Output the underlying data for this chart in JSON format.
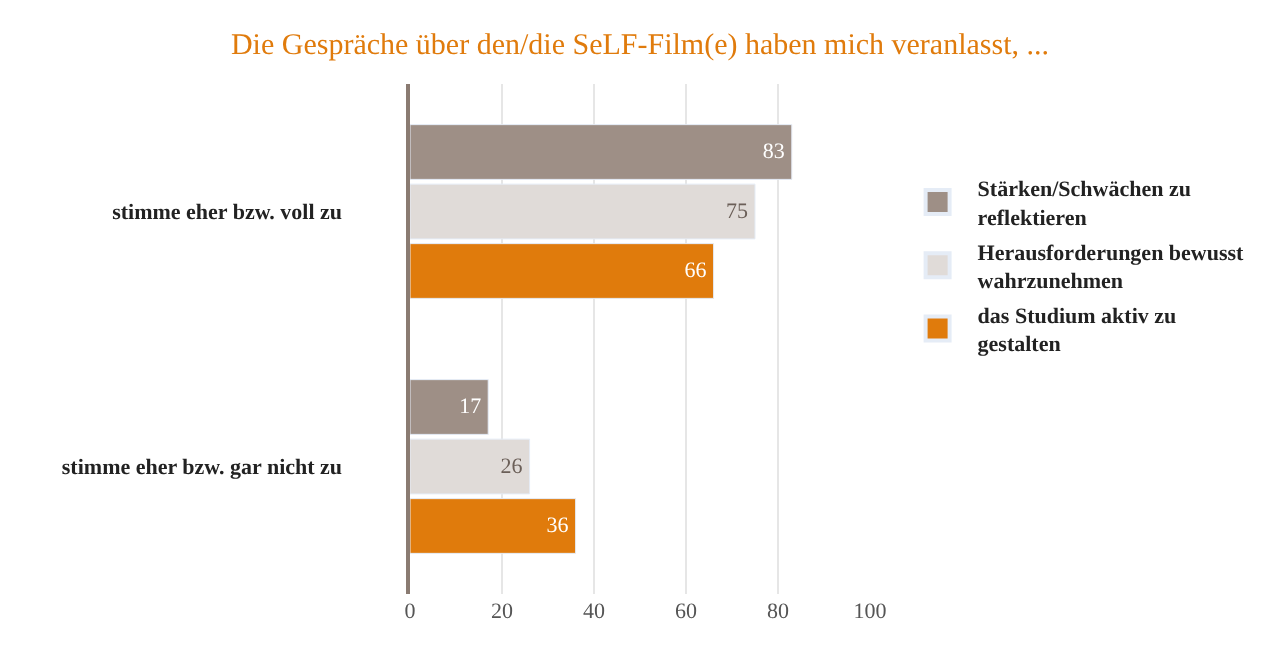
{
  "chart_data": {
    "type": "bar",
    "orientation": "horizontal",
    "title": "Die Gespräche über den/die SeLF-Film(e) haben mich veranlasst, ...",
    "categories": [
      "stimme eher bzw. voll zu",
      "stimme eher bzw. gar nicht zu"
    ],
    "series": [
      {
        "name": "Stärken/Schwächen zu reflektieren",
        "color": "#9e8f86",
        "values": [
          83,
          17
        ]
      },
      {
        "name": "Herausforderungen bewusst wahrzunehmen",
        "color": "#e0dbd8",
        "values": [
          75,
          26
        ]
      },
      {
        "name": "das Studium aktiv zu gestalten",
        "color": "#e07b0c",
        "values": [
          66,
          36
        ]
      }
    ],
    "xlim": [
      0,
      100
    ],
    "xticks": [
      0,
      20,
      40,
      60,
      80,
      100
    ],
    "grid": "x",
    "legend": "right",
    "data_labels": true
  }
}
